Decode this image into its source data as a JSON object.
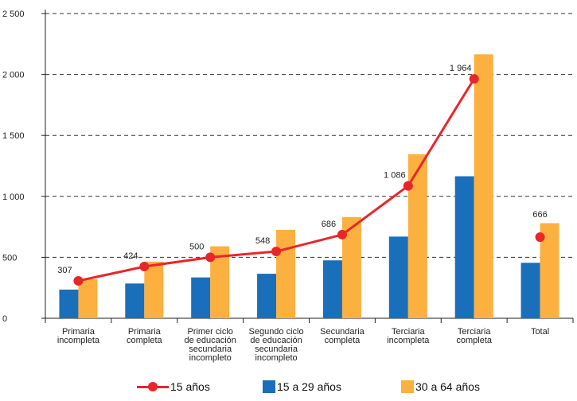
{
  "chart_data": {
    "type": "bar+line",
    "categories": [
      [
        "Primaria",
        "incompleta"
      ],
      [
        "Primaria",
        "completa"
      ],
      [
        "Primer ciclo",
        "de educación",
        "secundaria",
        "incompleto"
      ],
      [
        "Segundo ciclo",
        "de educación",
        "secundaria",
        "incompleto"
      ],
      [
        "Secundaria",
        "completa"
      ],
      [
        "Terciaria",
        "incompleta"
      ],
      [
        "Terciaria",
        "completa"
      ],
      [
        "Total"
      ]
    ],
    "ylim": [
      0,
      2500
    ],
    "yticks": [
      0,
      500,
      1000,
      1500,
      2000,
      2500
    ],
    "ytick_labels": [
      "0",
      "500",
      "1 000",
      "1 500",
      "2 000",
      "2 500"
    ],
    "grid": "horizontal dashed",
    "series": [
      {
        "name": "15 a 29 años",
        "kind": "bar",
        "color": "#1a6fba",
        "values": [
          235,
          285,
          335,
          365,
          475,
          670,
          1165,
          455
        ]
      },
      {
        "name": "30 a 64 años",
        "kind": "bar",
        "color": "#fbb040",
        "values": [
          320,
          465,
          590,
          725,
          830,
          1345,
          2165,
          780
        ]
      },
      {
        "name": "15 años",
        "kind": "line",
        "color": "#e8262a",
        "values": [
          307,
          424,
          500,
          548,
          686,
          1086,
          1964,
          666
        ],
        "labels": [
          "307",
          "424",
          "500",
          "548",
          "686",
          "1 086",
          "1 964",
          "666"
        ],
        "connected_count": 7
      }
    ],
    "legend_position": "bottom"
  }
}
